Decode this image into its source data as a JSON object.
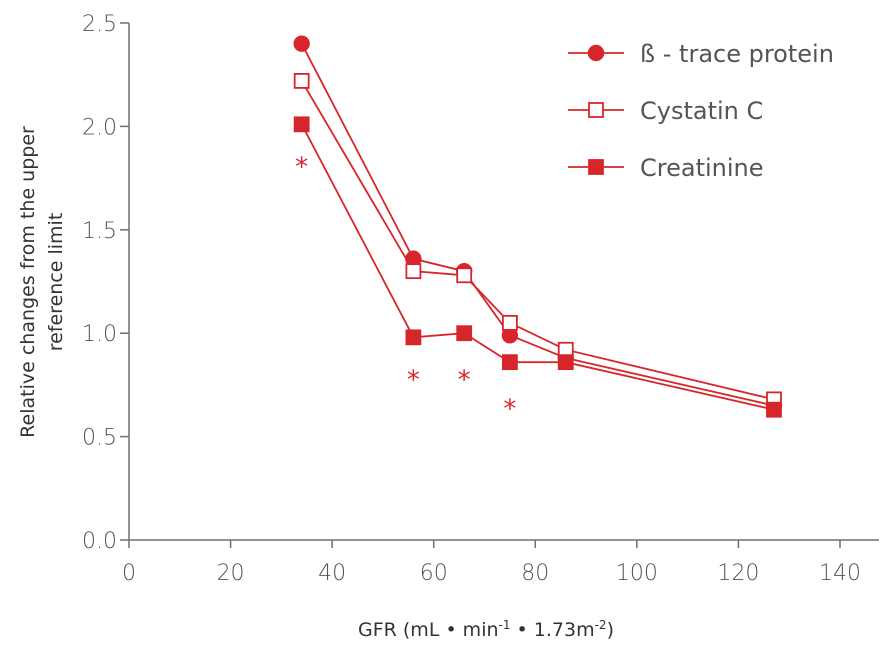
{
  "chart_data": {
    "type": "line",
    "title": "",
    "xlabel": "GFR (mL • min",
    "xlabel_sup1": "-1",
    "xlabel_mid": " • 1.73m",
    "xlabel_sup2": "-2",
    "xlabel_end": ")",
    "ylabel_line1": "Relative changes from the upper",
    "ylabel_line2": "reference limit",
    "xlim": [
      0,
      140
    ],
    "ylim": [
      0.0,
      2.5
    ],
    "x_ticks": [
      0,
      20,
      40,
      60,
      80,
      100,
      120,
      140
    ],
    "x_tick_labels": [
      "0",
      "20",
      "40",
      "60",
      "80",
      "100",
      "120",
      "140"
    ],
    "y_ticks": [
      0.0,
      0.5,
      1.0,
      1.5,
      2.0,
      2.5
    ],
    "y_tick_labels": [
      "0.0",
      "0.5",
      "1.0",
      "1.5",
      "2.0",
      "2.5"
    ],
    "grid": false,
    "legend_position": "top-right",
    "series": [
      {
        "name": "ß - trace protein",
        "marker": "filled-circle",
        "x": [
          34,
          56,
          66,
          75,
          86,
          127
        ],
        "y": [
          2.4,
          1.36,
          1.3,
          0.99,
          0.88,
          0.65
        ]
      },
      {
        "name": "Cystatin C",
        "marker": "open-square",
        "x": [
          34,
          56,
          66,
          75,
          86,
          127
        ],
        "y": [
          2.22,
          1.3,
          1.28,
          1.05,
          0.92,
          0.68
        ]
      },
      {
        "name": "Creatinine",
        "marker": "filled-square",
        "x": [
          34,
          56,
          66,
          75,
          86,
          127
        ],
        "y": [
          2.01,
          0.98,
          1.0,
          0.86,
          0.86,
          0.63
        ]
      }
    ],
    "annotations": [
      {
        "text": "*",
        "x": 34,
        "y": 1.83
      },
      {
        "text": "*",
        "x": 56,
        "y": 0.8
      },
      {
        "text": "*",
        "x": 66,
        "y": 0.8
      },
      {
        "text": "*",
        "x": 75,
        "y": 0.66
      }
    ],
    "colors": {
      "series": "#d7262b",
      "axis": "#6f6f6f",
      "text": "#555555"
    }
  }
}
